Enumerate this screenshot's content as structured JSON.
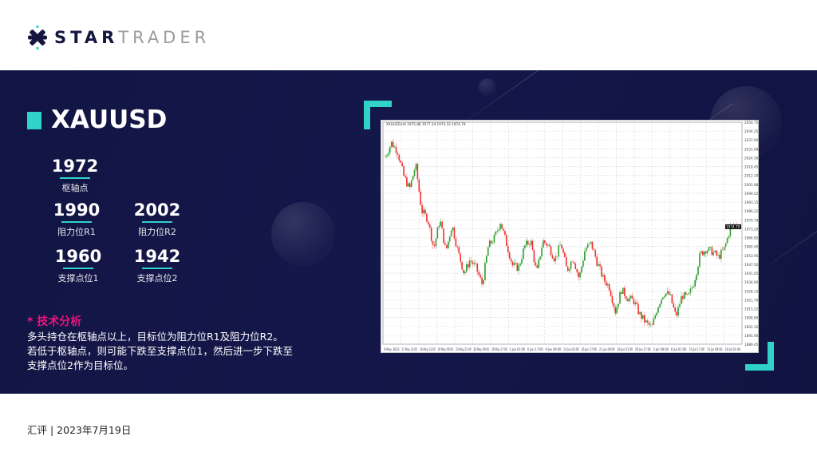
{
  "brand": {
    "logo_text_bold": "STAR",
    "logo_text_light": "TRADER",
    "logo_icon": "star-x-icon"
  },
  "symbol": "XAUUSD",
  "levels": {
    "pivot": {
      "value": "1972",
      "label": "枢轴点"
    },
    "r1": {
      "value": "1990",
      "label": "阻力位R1"
    },
    "r2": {
      "value": "2002",
      "label": "阻力位R2"
    },
    "s1": {
      "value": "1960",
      "label": "支撑点位1"
    },
    "s2": {
      "value": "1942",
      "label": "支撑点位2"
    }
  },
  "analysis": {
    "title": "* 技术分析",
    "lines": [
      "多头持仓在枢轴点以上，目标位为阻力位R1及阻力位R2。",
      "若低于枢轴点，则可能下跌至支撑点位1，然后进一步下跌至",
      "支撑点位2作为目标位。"
    ]
  },
  "footer": "汇评 | 2023年7月19日",
  "colors": {
    "accent": "#2fd3c8",
    "highlight": "#e8157d",
    "band": "#121543",
    "bull": "#2e9e2e",
    "bear": "#f03030"
  },
  "chart_data": {
    "type": "candlestick",
    "title": "XAUUSD,H4  1975.88 1977.34 1974.33 1974.79",
    "y_ticks": [
      "2050.75",
      "2044.25",
      "2037.60",
      "2031.08",
      "2024.50",
      "2018.45",
      "2012.20",
      "2005.88",
      "1999.52",
      "1993.15",
      "1986.22",
      "1979.79",
      "1973.29",
      "1966.85",
      "1960.40",
      "1953.95",
      "1947.50",
      "1941.05",
      "1934.60",
      "1928.15",
      "1921.70",
      "1915.22",
      "1908.80",
      "1902.35",
      "1895.90",
      "1889.45"
    ],
    "current_price": "1974.79",
    "ylim": [
      1889.45,
      2050.75
    ],
    "x_ticks": [
      "9 May 2023",
      "11 May 21:00",
      "16 May 13:00",
      "19 May 05:00",
      "23 May 21:00",
      "26 May 09:00",
      "29 May 17:00",
      "1 Jun 01:00",
      "6 Jun 17:00",
      "9 Jun 09:00",
      "14 Jun 01:00",
      "16 Jun 17:00",
      "21 Jun 09:00",
      "26 Jun 01:00",
      "28 Jun 17:00",
      "3 Jul 09:00",
      "6 Jul 01:00",
      "10 Jul 17:00",
      "13 Jul 09:00",
      "18 Jul 01:00"
    ],
    "grid": true,
    "close_keypoints": [
      2025.8,
      2035.7,
      2029.8,
      2012.0,
      2002.1,
      2019.9,
      1986.3,
      1980.4,
      1958.7,
      1980.4,
      1956.7,
      1976.4,
      1956.7,
      1940.9,
      1950.8,
      1944.8,
      1932.9,
      1960.6,
      1966.5,
      1978.4,
      1962.6,
      1946.8,
      1944.8,
      1960.6,
      1964.6,
      1940.9,
      1964.6,
      1960.6,
      1950.8,
      1962.6,
      1942.8,
      1952.7,
      1936.9,
      1958.7,
      1962.6,
      1948.7,
      1936.9,
      1931.0,
      1913.2,
      1929.0,
      1923.1,
      1921.1,
      1911.2,
      1905.3,
      1901.3,
      1917.2,
      1927.0,
      1925.0,
      1909.2,
      1925.0,
      1923.1,
      1934.9,
      1954.7,
      1958.7,
      1956.7,
      1952.7,
      1958.7,
      1974.4,
      1976.4
    ]
  }
}
